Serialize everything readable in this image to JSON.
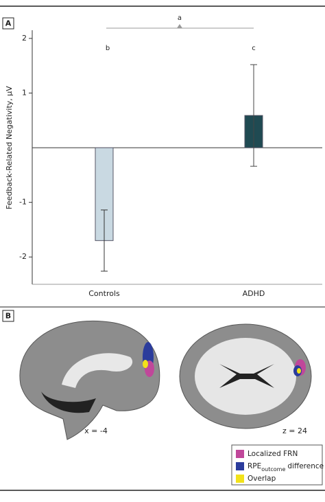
{
  "chart_data": {
    "type": "bar",
    "panel_label": "A",
    "ylabel": "Feedback-Related Negativity, μV",
    "categories": [
      "Controls",
      "ADHD"
    ],
    "values": [
      -1.7,
      0.59
    ],
    "errors": [
      0.56,
      0.93
    ],
    "colors": [
      "#c9d9e2",
      "#1f4a52"
    ],
    "annotations": [
      "a",
      "b",
      "c"
    ],
    "ylim": [
      -2.5,
      2.15
    ],
    "yticks": [
      2,
      1,
      -1,
      -2
    ]
  },
  "panel_b": {
    "label": "B",
    "slices": [
      {
        "label": "x = -4"
      },
      {
        "label": "z = 24"
      }
    ],
    "legend": [
      {
        "parts": [
          "Localized FRN"
        ],
        "color": "#c0479a"
      },
      {
        "parts": [
          "RPE",
          "outcome",
          "difference"
        ],
        "color": "#2b3c9c"
      },
      {
        "parts": [
          "Overlap"
        ],
        "color": "#f2e21a"
      }
    ]
  }
}
